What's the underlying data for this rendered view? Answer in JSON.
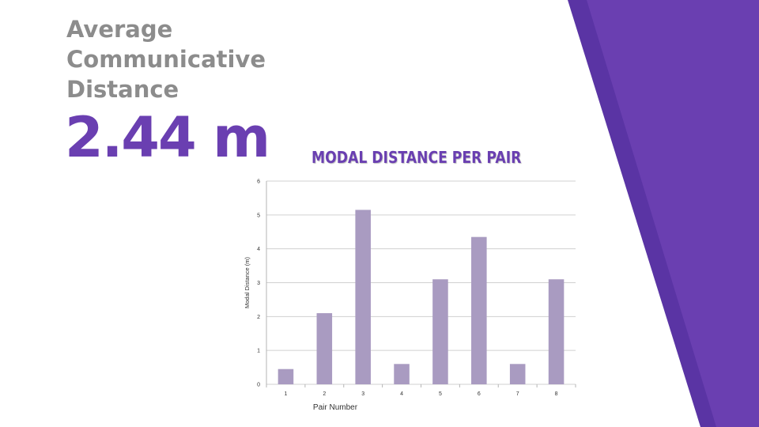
{
  "slide": {
    "heading": "Average Communicative Distance",
    "value": "2.44 m",
    "colors": {
      "accent": "#6a3fb1",
      "heading_gray": "#8c8c8c",
      "panel_dark": "#5a34a4",
      "panel_light": "#6a3fb1",
      "bar": "#a99bc1"
    }
  },
  "chart_data": {
    "type": "bar",
    "title": "MODAL DISTANCE PER PAIR",
    "xlabel": "Pair Number",
    "ylabel": "Modal Distance (m)",
    "categories": [
      "1",
      "2",
      "3",
      "4",
      "5",
      "6",
      "7",
      "8"
    ],
    "values": [
      0.45,
      2.1,
      5.15,
      0.6,
      3.1,
      4.35,
      0.6,
      3.1
    ],
    "ylim": [
      0,
      6
    ],
    "yticks": [
      0,
      1,
      2,
      3,
      4,
      5,
      6
    ],
    "grid": true,
    "legend": "none"
  }
}
